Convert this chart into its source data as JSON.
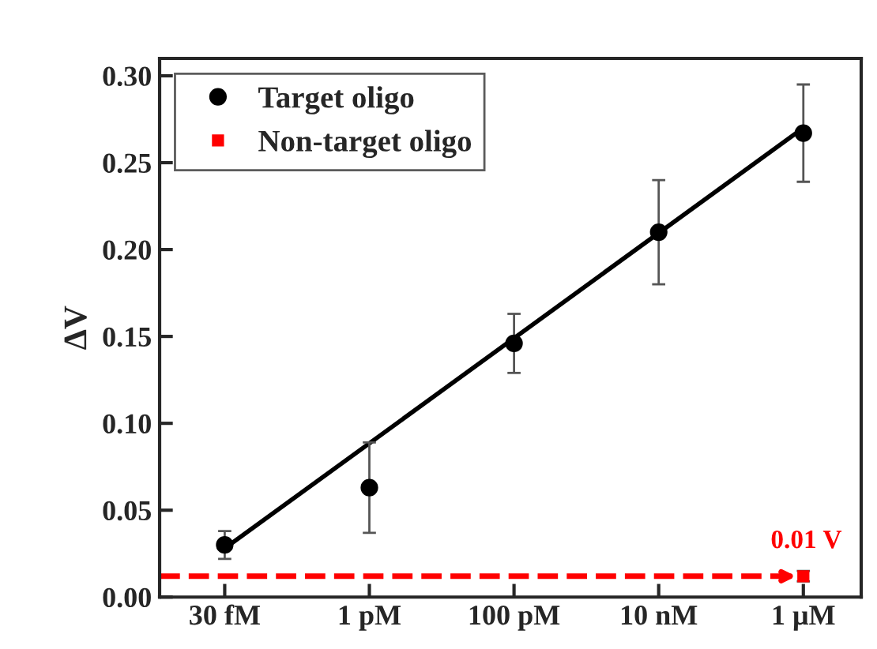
{
  "chart_data": {
    "type": "scatter",
    "ylabel": "ΔV",
    "categories": [
      "30 fM",
      "1 pM",
      "100 pM",
      "10 nM",
      "1 μM"
    ],
    "series": [
      {
        "name": "Target oligo",
        "color": "#000000",
        "marker": "circle",
        "values": [
          0.03,
          0.063,
          0.146,
          0.21,
          0.267
        ],
        "errors": [
          0.008,
          0.026,
          0.017,
          0.03,
          0.028
        ]
      },
      {
        "name": "Non-target oligo",
        "color": "#ff0000",
        "marker": "square",
        "x": [
          "1 μM"
        ],
        "values": [
          0.012
        ],
        "errors": [
          0.003
        ]
      },
      {
        "type": "line",
        "color": "#000000",
        "marker": "none",
        "line_style": "solid",
        "x": [
          "30 fM",
          "1 μM"
        ],
        "values": [
          0.028,
          0.27
        ]
      }
    ],
    "ref_lines": [
      {
        "axis": "y",
        "value": 0.012,
        "label": "0.01 V",
        "color": "#ff0000",
        "line_style": "dashed"
      }
    ],
    "ylim": [
      0,
      0.31
    ],
    "yticks": [
      {
        "value": 0,
        "label": "0.00"
      },
      {
        "value": 0.05,
        "label": "0.05"
      },
      {
        "value": 0.1,
        "label": "0.10"
      },
      {
        "value": 0.15,
        "label": "0.15"
      },
      {
        "value": 0.2,
        "label": "0.20"
      },
      {
        "value": 0.25,
        "label": "0.25"
      },
      {
        "value": 0.3,
        "label": "0.30"
      }
    ],
    "grid": false,
    "legend": "top left"
  }
}
